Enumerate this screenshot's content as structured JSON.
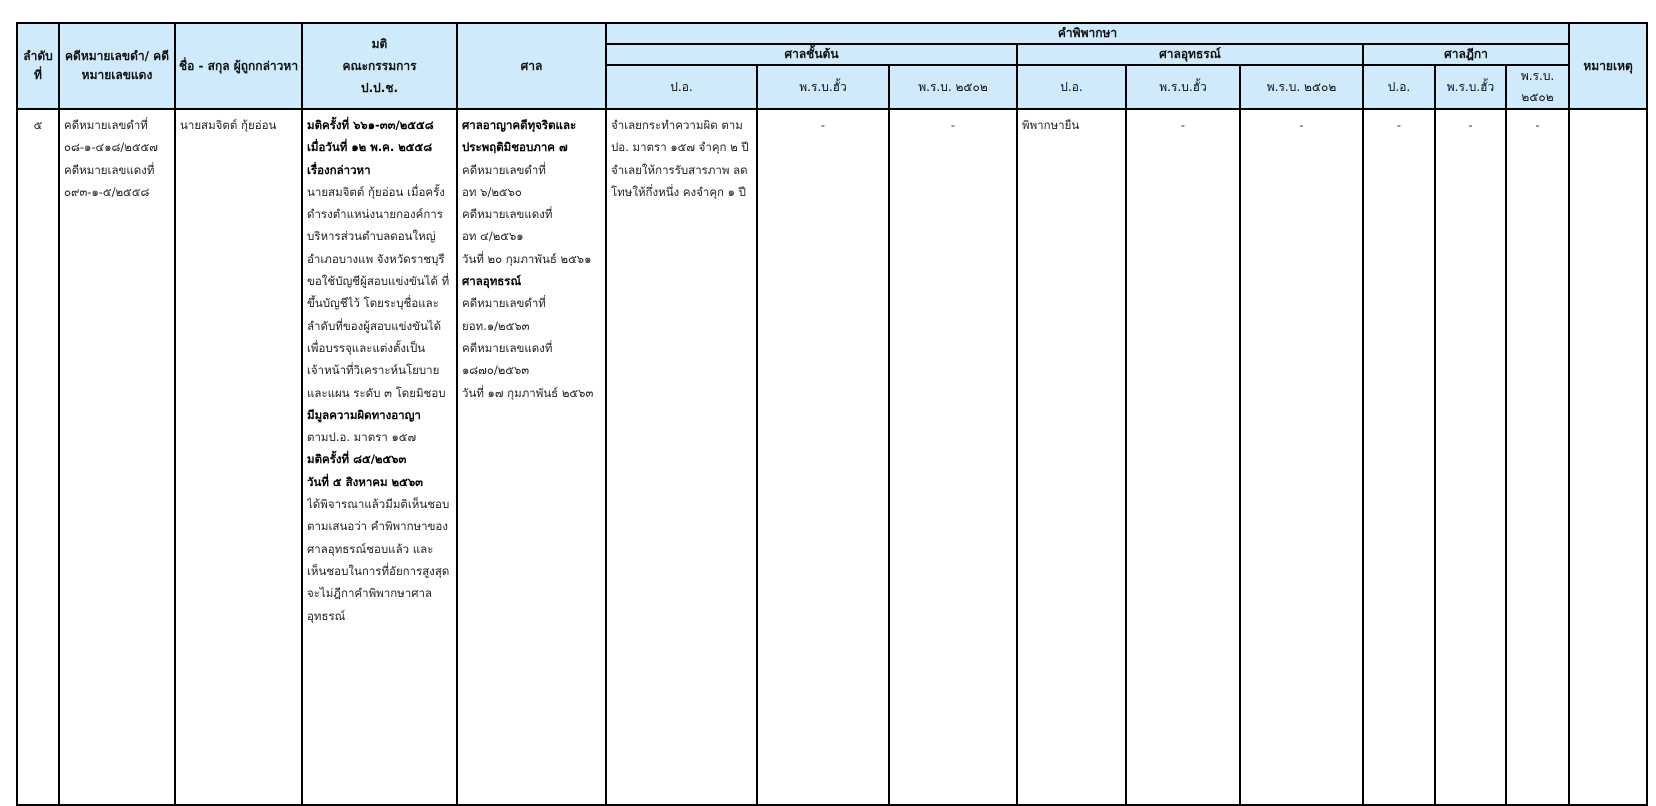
{
  "header": {
    "seq": "ลำดับ ที่",
    "case_no": "คดีหมายเลขดำ/ คดีหมายเลขแดง",
    "name": "ชื่อ - สกุล ผู้ถูกกล่าวหา",
    "resolution_1": "มติ",
    "resolution_2": "คณะกรรมการ",
    "resolution_3": "ป.ป.ช.",
    "court": "ศาล",
    "judgment": "คำพิพากษา",
    "first_instance": "ศาลชั้นต้น",
    "appeal": "ศาลอุทธรณ์",
    "supreme": "ศาลฎีกา",
    "remark": "หมายเหตุ",
    "sub": [
      "ป.อ.",
      "พ.ร.บ.ฮั้ว",
      "พ.ร.บ. ๒๕๐๒",
      "ป.อ.",
      "พ.ร.บ.ฮั้ว",
      "พ.ร.บ. ๒๕๐๒",
      "ป.อ.",
      "พ.ร.บ.ฮั้ว",
      "พ.ร.บ. ๒๕๐๒"
    ]
  },
  "row": {
    "seq": "๕",
    "case_no": [
      {
        "text": "คดีหมายเลขดำที่"
      },
      {
        "text": "๐๘-๑-๔๑๘/๒๕๕๗"
      },
      {
        "text": "คดีหมายเลขแดงที่"
      },
      {
        "text": "๐๙๓-๑-๕/๒๕๕๘"
      }
    ],
    "name": "นายสมจิตต์ กุ้ยอ่อน",
    "resolution": [
      {
        "text": "มติครั้งที่ ๖๖๑-๓๓/๒๕๕๘",
        "bold": true
      },
      {
        "text": "เมื่อวันที่ ๑๒ พ.ค. ๒๕๕๘",
        "bold": true
      },
      {
        "text": "เรื่องกล่าวหา",
        "bold": true
      },
      {
        "text": "นายสมจิตต์ กุ้ยอ่อน เมื่อครั้ง"
      },
      {
        "text": "ดำรงตำแหน่งนายกองค์การ"
      },
      {
        "text": "บริหารส่วนตำบลดอนใหญ่"
      },
      {
        "text": "อำเภอบางแพ จังหวัดราชบุรี"
      },
      {
        "text": "ขอใช้บัญชีผู้สอบแข่งขันได้ ที่"
      },
      {
        "text": "ขึ้นบัญชีไว้ โดยระบุชื่อและ"
      },
      {
        "text": "ลำดับที่ของผู้สอบแข่งขันได้"
      },
      {
        "text": "เพื่อบรรจุและแต่งตั้งเป็น"
      },
      {
        "text": "เจ้าหน้าที่วิเคราะห์นโยบาย"
      },
      {
        "text": "และแผน ระดับ ๓ โดยมิชอบ"
      },
      {
        "text": "มีมูลความผิดทางอาญา",
        "bold": true
      },
      {
        "text": "ตามป.อ. มาตรา ๑๕๗"
      },
      {
        "text": "มติครั้งที่ ๘๕/๒๕๖๓",
        "bold": true
      },
      {
        "text": "วันที่ ๕ สิงหาคม ๒๕๖๓",
        "bold": true
      },
      {
        "text": "ได้พิจารณาแล้วมีมติเห็นชอบ"
      },
      {
        "text": "ตามเสนอว่า คำพิพากษาของ"
      },
      {
        "text": "ศาลอุทธรณ์ชอบแล้ว และ"
      },
      {
        "text": "เห็นชอบในการที่อัยการสูงสุด"
      },
      {
        "text": " จะไม่ฎีกาคำพิพากษาศาล"
      },
      {
        "text": "อุทธรณ์"
      }
    ],
    "court": [
      {
        "text": "ศาลอาญาคดีทุจริตและ",
        "bold": true
      },
      {
        "text": "ประพฤติมิชอบภาค ๗",
        "bold": true
      },
      {
        "text": "คดีหมายเลขดำที่"
      },
      {
        "text": "อท ๖/๒๕๖๐"
      },
      {
        "text": "คดีหมายเลขแดงที่"
      },
      {
        "text": "อท ๔/๒๕๖๑"
      },
      {
        "text": "วันที่ ๒๐ กุมภาพันธ์ ๒๕๖๑"
      },
      {
        "text": "ศาลอุทธรณ์",
        "bold": true
      },
      {
        "text": "คดีหมายเลขดำที่"
      },
      {
        "text": "ยอท.๑/๒๕๖๓"
      },
      {
        "text": "คดีหมายเลขแดงที่"
      },
      {
        "text": "๑๘๗๐/๒๕๖๓"
      },
      {
        "text": "วันที่ ๑๗ กุมภาพันธ์ ๒๕๖๓"
      }
    ],
    "first_po": [
      {
        "text": "จำเลยกระทำความผิด ตาม"
      },
      {
        "text": "ปอ. มาตรา ๑๕๗ จำคุก ๒ ปี"
      },
      {
        "text": "จำเลยให้การรับสารภาพ ลด"
      },
      {
        "text": "โทษให้กึ่งหนึ่ง คงจำคุก ๑ ปี"
      }
    ],
    "first_hua": "-",
    "first_2502": "-",
    "appeal_po": "พิพากษายืน",
    "appeal_hua": "-",
    "appeal_2502": "-",
    "supreme_po": "-",
    "supreme_hua": "-",
    "supreme_2502": "-",
    "remark": ""
  }
}
